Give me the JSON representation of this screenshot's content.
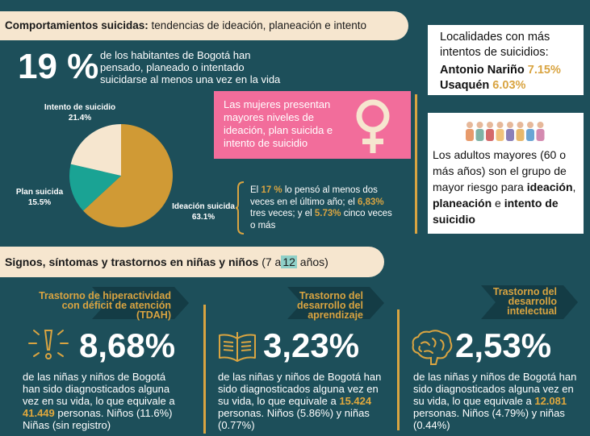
{
  "header": {
    "title_bold": "Comportamientos suicidas:",
    "title_rest": "tendencias de ideación, planeación e intento"
  },
  "headline": {
    "percent": "19 %",
    "text": "de los habitantes de Bogotá han pensado, planeado o intentado suicidarse al menos una vez en la vida"
  },
  "pie": {
    "slices": [
      {
        "name": "Intento de suicidio",
        "pct_label": "21.4%",
        "value": 21.4,
        "color": "#f6e6cf"
      },
      {
        "name": "Plan suicida",
        "pct_label": "15.5%",
        "value": 15.5,
        "color": "#1aa394"
      },
      {
        "name": "Ideación suicida",
        "pct_label": "63.1%",
        "value": 63.1,
        "color": "#d09a35"
      }
    ]
  },
  "women_box": {
    "text": "Las mujeres presentan mayores niveles de ideación, plan suicida e intento de suicidio"
  },
  "ideation_note": {
    "p1": "El",
    "v1": "17 %",
    "p2": "lo pensó al menos dos veces en el último año; el",
    "v2": "6,83%",
    "p3": "tres veces; y el",
    "v3": "5.73%",
    "p4": "cinco veces o más"
  },
  "localidades": {
    "title": "Localidades con más intentos de suicidios:",
    "items": [
      {
        "name": "Antonio Nariño",
        "value": "7.15%"
      },
      {
        "name": "Usaquén",
        "value": "6.03%"
      }
    ]
  },
  "adultos": {
    "t1": "Los adultos mayores (60 o más años) son el grupo de mayor riesgo para",
    "b1": "ideación",
    "t2": ",",
    "b2": "planeación",
    "t3": "e",
    "b3": "intento de suicidio"
  },
  "section2": {
    "title_bold": "Signos, síntomas y trastornos en niñas y niños",
    "title_pre": "(7 a",
    "title_hl": "12",
    "title_post": "años)"
  },
  "disorders": [
    {
      "title": "Trastorno de hiperactividad con déficit de atención (TDAH)",
      "percent": "8,68%",
      "t1": "de las niñas y niños de Bogotá han sido diagnosticados alguna vez en su vida, lo que equivale a",
      "count": "41.449",
      "t2": "personas. Niños (11.6%) Niñas (sin registro)",
      "icon": "alert-icon"
    },
    {
      "title": "Trastorno del desarrollo del aprendizaje",
      "percent": "3,23%",
      "t1": "de las niñas y niños de Bogotá han sido diagnosticados alguna vez en su vida, lo que equivale a",
      "count": "15.424",
      "t2": "personas. Niños (5.86%) y niñas (0.77%)",
      "icon": "book-icon"
    },
    {
      "title": "Trastorno del desarrollo intelectual",
      "percent": "2,53%",
      "t1": "de las niñas y niños de Bogotá han sido diagnosticados alguna vez en su vida, lo que equivale a",
      "count": "12.081",
      "t2": "personas. Niños (4.79%) y niñas (0.44%)",
      "icon": "brain-icon"
    }
  ]
}
